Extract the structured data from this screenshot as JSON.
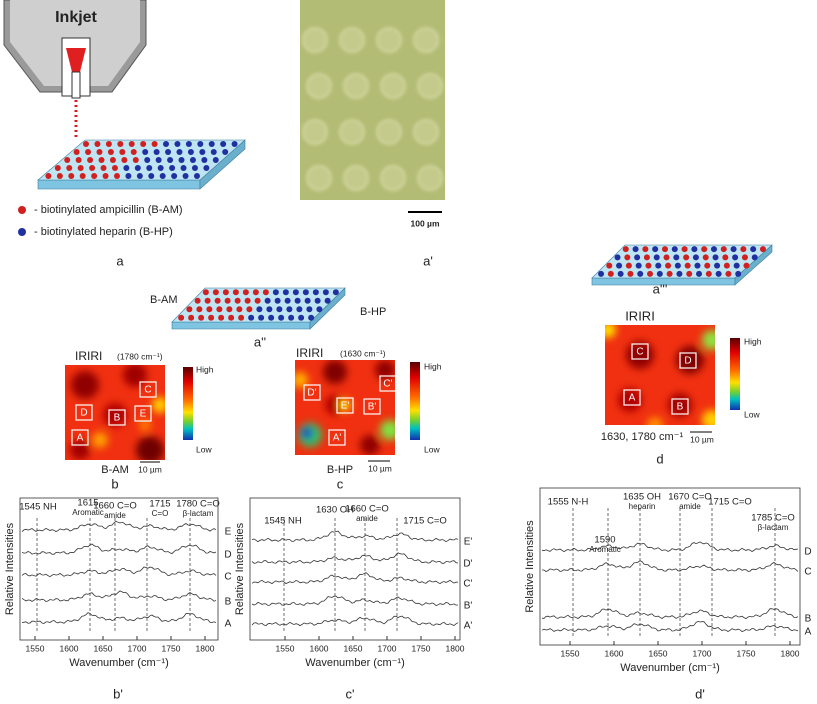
{
  "panel_a": {
    "title": "Inkjet",
    "legend": [
      "- biotinylated ampicillin (B-AM)",
      "- biotinylated heparin (B-HP)"
    ],
    "label": "a"
  },
  "panel_a_prime": {
    "scale_bar": "100 µm",
    "label": "a'"
  },
  "panel_a_double_prime": {
    "left": "B-AM",
    "right": "B-HP",
    "label": "a''"
  },
  "panel_a_triple_prime": {
    "label": "a'''"
  },
  "panel_b": {
    "title": "IRIRI",
    "subtitle": "(1780 cm⁻¹)",
    "boxes": [
      "C",
      "D",
      "B",
      "E",
      "A"
    ],
    "caption": "B-AM",
    "scale_bar": "10 µm",
    "high": "High",
    "low": "Low",
    "label": "b"
  },
  "panel_c": {
    "title": "IRIRI",
    "subtitle": "(1630 cm⁻¹)",
    "boxes": [
      "D'",
      "C'",
      "E'",
      "B'",
      "A'"
    ],
    "caption": "B-HP",
    "scale_bar": "10 µm",
    "high": "High",
    "low": "Low",
    "label": "c"
  },
  "panel_d": {
    "title": "IRIRI",
    "boxes": [
      "C",
      "D",
      "A",
      "B"
    ],
    "caption": "1630, 1780 cm⁻¹",
    "scale_bar": "10 µm",
    "high": "High",
    "low": "Low",
    "label": "d"
  },
  "spectra_b": {
    "annotations": [
      [
        "1545 NH"
      ],
      [
        "1615",
        "Aromatic"
      ],
      [
        "1660 C=O",
        "amide"
      ],
      [
        "1715",
        "C=O"
      ],
      [
        "1780 C=O",
        "β-lactam"
      ]
    ],
    "curves": [
      "E",
      "D",
      "C",
      "B",
      "A"
    ],
    "xticks": [
      1550,
      1600,
      1650,
      1700,
      1750,
      1800
    ],
    "xlabel": "Wavenumber (cm⁻¹)",
    "ylabel": "Relative Intensities",
    "label": "b'"
  },
  "spectra_c": {
    "annotations": [
      [
        "1545 NH"
      ],
      [
        "1630 OH"
      ],
      [
        "1660 C=O",
        "amide"
      ],
      [
        "1715 C=O"
      ]
    ],
    "curves": [
      "E'",
      "D'",
      "C'",
      "B'",
      "A'"
    ],
    "xticks": [
      1550,
      1600,
      1650,
      1700,
      1750,
      1800
    ],
    "xlabel": "Wavenumber (cm⁻¹)",
    "ylabel": "Relative Intensities",
    "label": "c'"
  },
  "spectra_d": {
    "annotations": [
      [
        "1555 N-H"
      ],
      [
        "1590",
        "Aromatic"
      ],
      [
        "1635 OH",
        "heparin"
      ],
      [
        "1670 C=O",
        "amide"
      ],
      [
        "1715 C=O"
      ],
      [
        "1785 C=O",
        "β-lactam"
      ]
    ],
    "curves": [
      "D",
      "C",
      "B",
      "A"
    ],
    "xticks": [
      1550,
      1600,
      1650,
      1700,
      1750,
      1800
    ],
    "xlabel": "Wavenumber (cm⁻¹)",
    "ylabel": "Relative Intensities",
    "label": "d'"
  }
}
